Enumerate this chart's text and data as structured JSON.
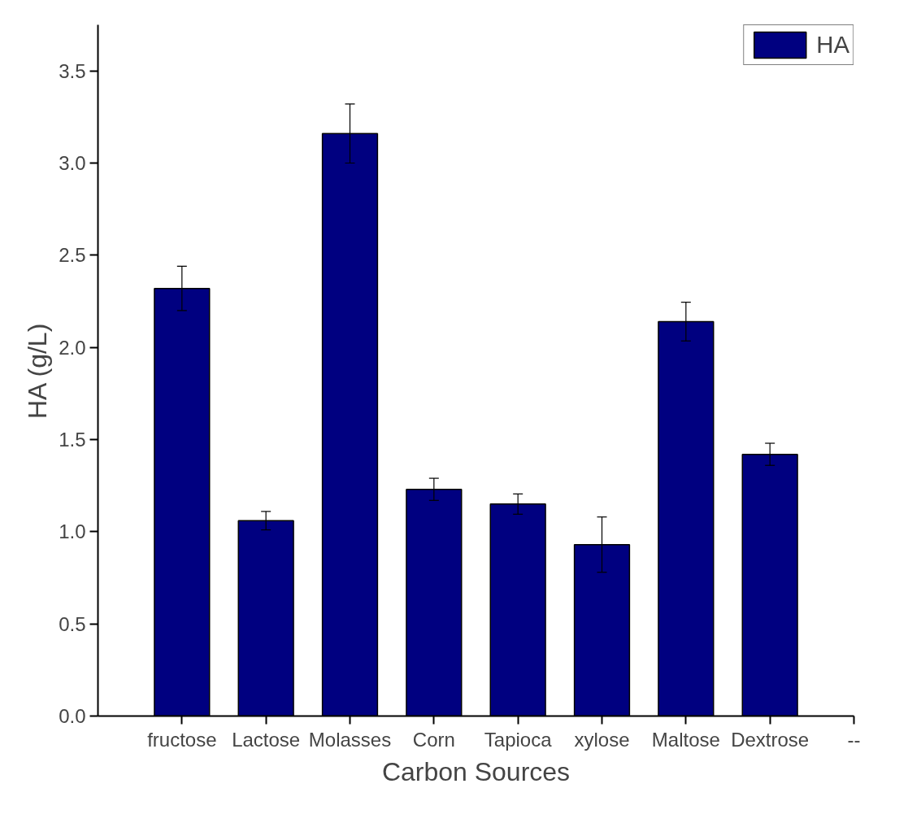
{
  "chart_data": {
    "type": "bar",
    "xlabel": "Carbon Sources",
    "ylabel": "HA (g/L)",
    "categories": [
      "fructose",
      "Lactose",
      "Molasses",
      "Corn",
      "Tapioca",
      "xylose",
      "Maltose",
      "Dextrose",
      "--"
    ],
    "series": [
      {
        "name": "HA",
        "color": "#000080",
        "values": [
          2.32,
          1.06,
          3.16,
          1.23,
          1.15,
          0.93,
          2.14,
          1.42,
          null
        ],
        "errors": [
          0.12,
          0.05,
          0.16,
          0.06,
          0.055,
          0.15,
          0.105,
          0.06,
          null
        ]
      }
    ],
    "ylim": [
      0,
      3.75
    ],
    "yticks": [
      {
        "value": 0,
        "label": "0.0"
      },
      0.5,
      {
        "value": 1,
        "label": "1.0"
      },
      1.5,
      {
        "value": 2,
        "label": "2.0"
      },
      2.5,
      {
        "value": 3,
        "label": "3.0"
      },
      3.5
    ],
    "grid": false,
    "legend": "top right"
  }
}
